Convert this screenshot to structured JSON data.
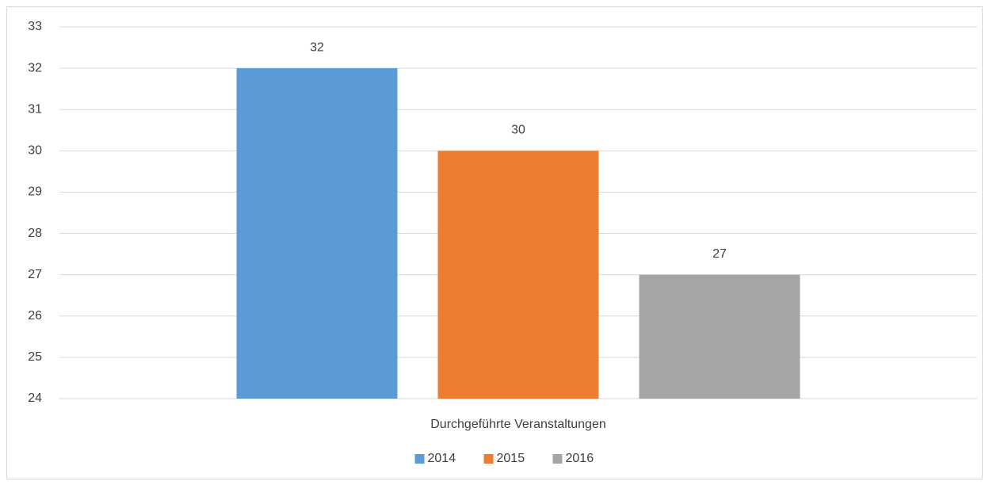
{
  "chart_data": {
    "type": "bar",
    "categories": [
      "Durchgeführte Veranstaltungen"
    ],
    "series": [
      {
        "name": "2014",
        "color": "#5b9bd5",
        "values": [
          32
        ]
      },
      {
        "name": "2015",
        "color": "#ed7d31",
        "values": [
          30
        ]
      },
      {
        "name": "2016",
        "color": "#a5a5a5",
        "values": [
          27
        ]
      }
    ],
    "ylim": [
      24,
      33
    ],
    "yticks": [
      24,
      25,
      26,
      27,
      28,
      29,
      30,
      31,
      32,
      33
    ],
    "grid": true,
    "legend": "bottom",
    "data_labels": true
  }
}
